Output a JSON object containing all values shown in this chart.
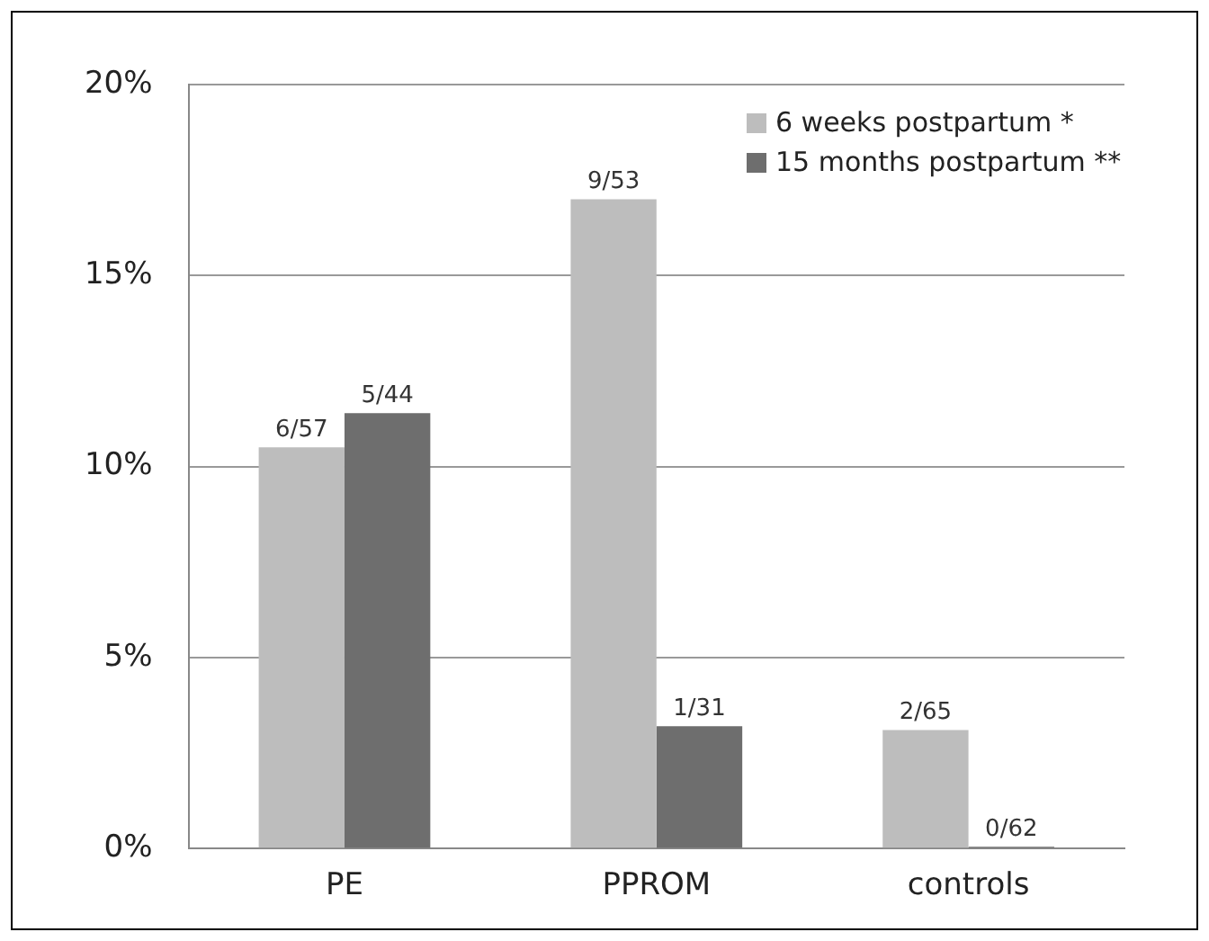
{
  "chart_data": {
    "type": "bar",
    "categories": [
      "PE",
      "PPROM",
      "controls"
    ],
    "series": [
      {
        "name": "6 weeks postpartum *",
        "color": "#bdbdbd",
        "values": [
          10.5,
          17.0,
          3.1
        ],
        "value_labels": [
          "6/57",
          "9/53",
          "2/65"
        ]
      },
      {
        "name": "15 months postpartum **",
        "color": "#6e6e6e",
        "values": [
          11.4,
          3.2,
          0
        ],
        "value_labels": [
          "5/44",
          "1/31",
          "0/62"
        ]
      }
    ],
    "ylim": [
      0,
      20
    ],
    "yticks": [
      {
        "value": 0,
        "label": "0%"
      },
      {
        "value": 5,
        "label": "5%"
      },
      {
        "value": 10,
        "label": "10%"
      },
      {
        "value": 15,
        "label": "15%"
      },
      {
        "value": 20,
        "label": "20%"
      }
    ],
    "grid": "y",
    "legend": "top right"
  }
}
